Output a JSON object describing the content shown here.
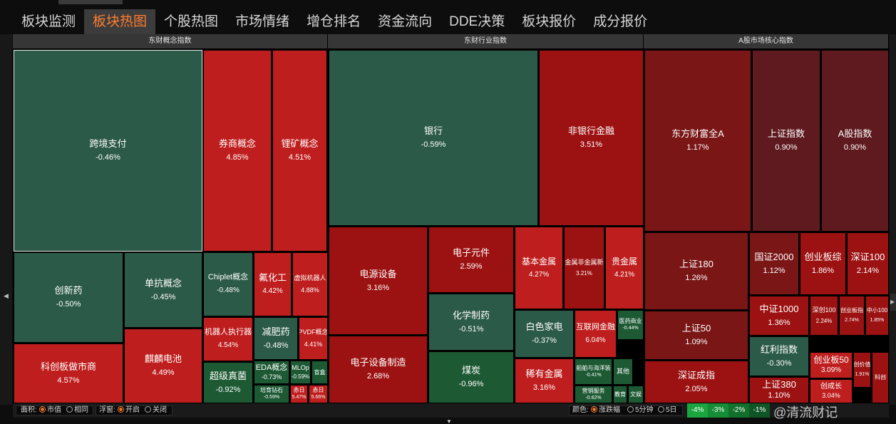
{
  "tabs": [
    {
      "label": "板块监测",
      "active": false
    },
    {
      "label": "板块热图",
      "active": true
    },
    {
      "label": "个股热图",
      "active": false
    },
    {
      "label": "市场情绪",
      "active": false
    },
    {
      "label": "增仓排名",
      "active": false
    },
    {
      "label": "资金流向",
      "active": false
    },
    {
      "label": "DDE决策",
      "active": false
    },
    {
      "label": "板块报价",
      "active": false
    },
    {
      "label": "成分报价",
      "active": false
    }
  ],
  "colors": {
    "down": "#2c5a48",
    "up_strong": "#bf1e1e",
    "up_mid": "#9c1212",
    "up_weak": "#7a1616",
    "up_faint": "#5e1a1e",
    "down_strong": "#1d5a34",
    "accent": "#ff7d2e"
  },
  "sections": [
    {
      "title": "东财概念指数"
    },
    {
      "title": "东财行业指数"
    },
    {
      "title": "A股市场核心指数"
    }
  ],
  "tiles": [
    {
      "name": "跨境支付",
      "pct": "-0.46%"
    },
    {
      "name": "券商概念",
      "pct": "4.85%"
    },
    {
      "name": "锂矿概念",
      "pct": "4.51%"
    },
    {
      "name": "创新药",
      "pct": "-0.50%"
    },
    {
      "name": "单抗概念",
      "pct": "-0.45%"
    },
    {
      "name": "Chiplet概念",
      "pct": "-0.48%"
    },
    {
      "name": "氟化工",
      "pct": "4.42%"
    },
    {
      "name": "虚拟机器人",
      "pct": "4.88%"
    },
    {
      "name": "科创板做市商",
      "pct": "4.57%"
    },
    {
      "name": "麒麟电池",
      "pct": "4.49%"
    },
    {
      "name": "机器人执行器",
      "pct": "4.54%"
    },
    {
      "name": "减肥药",
      "pct": "-0.48%"
    },
    {
      "name": "PVDF概念",
      "pct": "4.41%"
    },
    {
      "name": "超级真菌",
      "pct": "-0.92%"
    },
    {
      "name": "EDA概念",
      "pct": "-0.73%"
    },
    {
      "name": "MLOp",
      "pct": "-0.59%"
    },
    {
      "name": "盲盒",
      "pct": ""
    },
    {
      "name": "培育钻石",
      "pct": "-0.59%"
    },
    {
      "name": "赤日",
      "pct": "5.47%"
    },
    {
      "name": "赤日",
      "pct": "5.66%"
    },
    {
      "name": "银行",
      "pct": "-0.59%"
    },
    {
      "name": "非银行金融",
      "pct": "3.51%"
    },
    {
      "name": "电源设备",
      "pct": "3.16%"
    },
    {
      "name": "电子元件",
      "pct": "2.59%"
    },
    {
      "name": "基本金属",
      "pct": "4.27%"
    },
    {
      "name": "金属非金属新",
      "pct": "3.21%"
    },
    {
      "name": "贵金属",
      "pct": "4.21%"
    },
    {
      "name": "化学制药",
      "pct": "-0.51%"
    },
    {
      "name": "白色家电",
      "pct": "-0.37%"
    },
    {
      "name": "互联网金融",
      "pct": "6.04%"
    },
    {
      "name": "医药商业",
      "pct": "-0.44%"
    },
    {
      "name": "电子设备制造",
      "pct": "2.68%"
    },
    {
      "name": "煤炭",
      "pct": "-0.96%"
    },
    {
      "name": "稀有金属",
      "pct": "3.16%"
    },
    {
      "name": "船舶与海洋装",
      "pct": "-0.41%"
    },
    {
      "name": "其他",
      "pct": ""
    },
    {
      "name": "营销服务",
      "pct": "-0.62%"
    },
    {
      "name": "教育",
      "pct": ""
    },
    {
      "name": "文娱",
      "pct": ""
    },
    {
      "name": "东方财富全A",
      "pct": "1.17%"
    },
    {
      "name": "上证指数",
      "pct": "0.90%"
    },
    {
      "name": "A股指数",
      "pct": "0.90%"
    },
    {
      "name": "上证180",
      "pct": "1.26%"
    },
    {
      "name": "国证2000",
      "pct": "1.12%"
    },
    {
      "name": "创业板综",
      "pct": "1.86%"
    },
    {
      "name": "深证100",
      "pct": "2.14%"
    },
    {
      "name": "上证50",
      "pct": "1.09%"
    },
    {
      "name": "中证1000",
      "pct": "1.36%"
    },
    {
      "name": "深创100",
      "pct": "2.24%"
    },
    {
      "name": "创业板指",
      "pct": "2.74%"
    },
    {
      "name": "中小100",
      "pct": "1.85%"
    },
    {
      "name": "红利指数",
      "pct": "-0.30%"
    },
    {
      "name": "深证成指",
      "pct": "2.05%"
    },
    {
      "name": "上证380",
      "pct": "1.10%"
    },
    {
      "name": "创业板50",
      "pct": "3.09%"
    },
    {
      "name": "创价值",
      "pct": "1.91%"
    },
    {
      "name": "科创",
      "pct": ""
    },
    {
      "name": "创成长",
      "pct": "3.04%"
    }
  ],
  "bottom": {
    "area_label": "面积:",
    "area_opt1": "市值",
    "area_opt2": "相同",
    "float_label": "浮窗:",
    "float_opt1": "开启",
    "float_opt2": "关闭",
    "color_label": "颜色:",
    "color_opt1": "涨跌幅",
    "color_opt2": "5分钟",
    "color_opt3": "5日",
    "scale": [
      "-4%",
      "-3%",
      "-2%",
      "-1%"
    ]
  },
  "watermark": "@清流财记"
}
